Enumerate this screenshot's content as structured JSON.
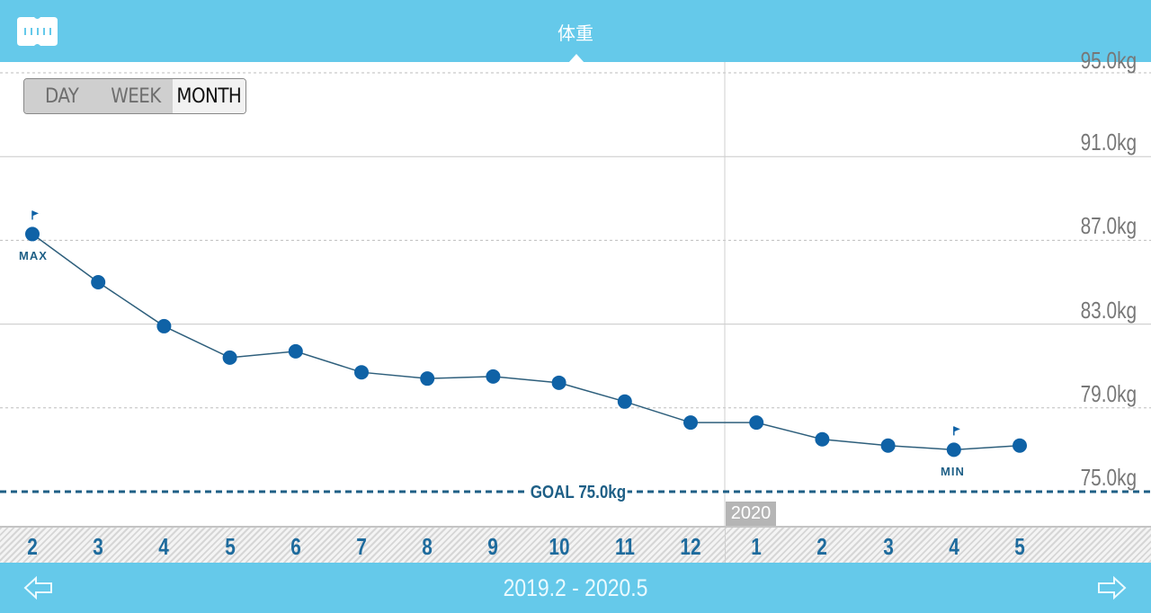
{
  "header": {
    "title": "体重",
    "app_icon": "ruler-icon"
  },
  "period_selector": {
    "options": [
      {
        "label": "DAY",
        "selected": false
      },
      {
        "label": "WEEK",
        "selected": false
      },
      {
        "label": "MONTH",
        "selected": true
      }
    ]
  },
  "y_axis": {
    "labels": [
      "95.0kg",
      "91.0kg",
      "87.0kg",
      "83.0kg",
      "79.0kg",
      "75.0kg"
    ]
  },
  "goal": {
    "label": "GOAL 75.0kg",
    "value": 75.0
  },
  "year_marker": "2020",
  "markers": {
    "max": "MAX",
    "min": "MIN"
  },
  "footer": {
    "range": "2019.2 - 2020.5",
    "prev_icon": "arrow-left-icon",
    "next_icon": "arrow-right-icon"
  },
  "colors": {
    "bar": "#65c9ea",
    "series": "#0f62a6",
    "line": "#2e5f7c",
    "goal": "#1e5f86"
  },
  "chart_data": {
    "type": "line",
    "title": "体重",
    "xlabel": "",
    "ylabel": "kg",
    "categories": [
      "2",
      "3",
      "4",
      "5",
      "6",
      "7",
      "8",
      "9",
      "10",
      "11",
      "12",
      "1",
      "2",
      "3",
      "4",
      "5"
    ],
    "x_full": [
      "2019.2",
      "2019.3",
      "2019.4",
      "2019.5",
      "2019.6",
      "2019.7",
      "2019.8",
      "2019.9",
      "2019.10",
      "2019.11",
      "2019.12",
      "2020.1",
      "2020.2",
      "2020.3",
      "2020.4",
      "2020.5"
    ],
    "series": [
      {
        "name": "体重",
        "values": [
          87.3,
          85.0,
          82.9,
          81.4,
          81.7,
          80.7,
          80.4,
          80.5,
          80.2,
          79.3,
          78.3,
          78.3,
          77.5,
          77.2,
          77.0,
          77.2
        ]
      }
    ],
    "ylim": [
      75.0,
      95.0
    ],
    "yticks": [
      75.0,
      79.0,
      83.0,
      87.0,
      91.0,
      95.0
    ],
    "grid": true,
    "annotations": [
      {
        "text": "MAX",
        "x": "2019.2",
        "value": 87.3
      },
      {
        "text": "MIN",
        "x": "2020.4",
        "value": 77.0
      },
      {
        "text": "GOAL 75.0kg",
        "value": 75.0
      },
      {
        "text": "2020",
        "x": "2020.1"
      }
    ],
    "legend": "none"
  }
}
